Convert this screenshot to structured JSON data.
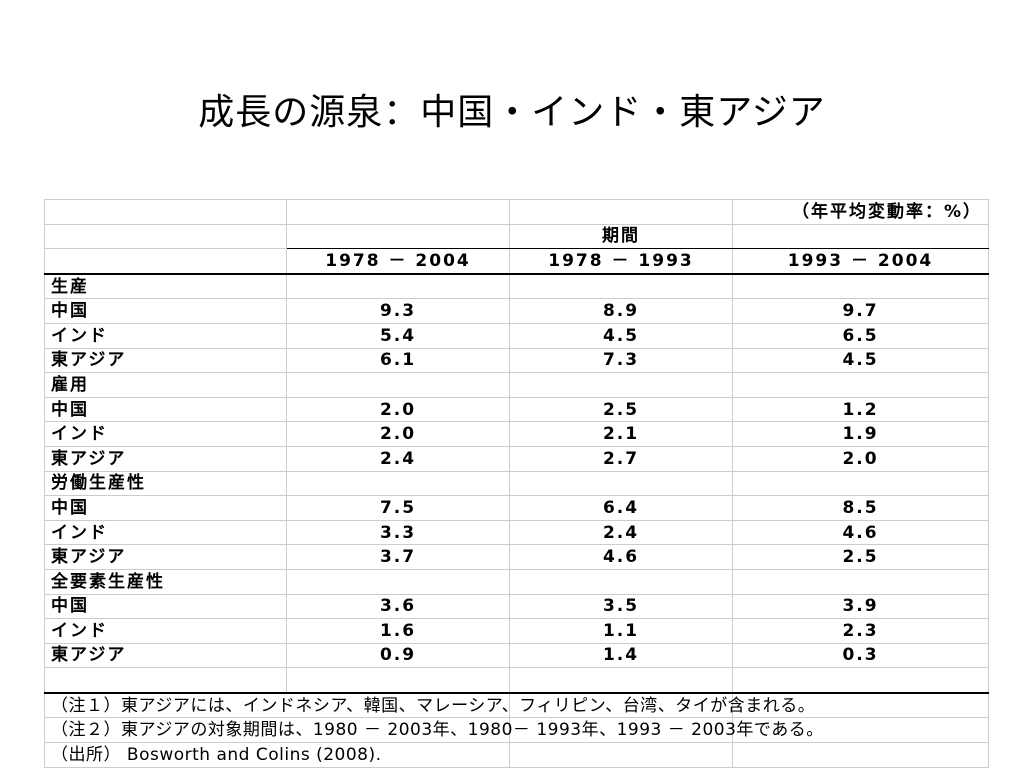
{
  "title": "成長の源泉：中国・インド・東アジア",
  "table": {
    "unit": "（年平均変動率：%）",
    "period_label": "期間",
    "columns": [
      "1978 － 2004",
      "1978 － 1993",
      "1993 － 2004"
    ],
    "sections": [
      {
        "label": "生産",
        "rows": [
          {
            "name": "中国",
            "values": [
              "9.3",
              "8.9",
              "9.7"
            ]
          },
          {
            "name": "インド",
            "values": [
              "5.4",
              "4.5",
              "6.5"
            ]
          },
          {
            "name": "東アジア",
            "values": [
              "6.1",
              "7.3",
              "4.5"
            ]
          }
        ]
      },
      {
        "label": "雇用",
        "rows": [
          {
            "name": "中国",
            "values": [
              "2.0",
              "2.5",
              "1.2"
            ]
          },
          {
            "name": "インド",
            "values": [
              "2.0",
              "2.1",
              "1.9"
            ]
          },
          {
            "name": "東アジア",
            "values": [
              "2.4",
              "2.7",
              "2.0"
            ]
          }
        ]
      },
      {
        "label": "労働生産性",
        "rows": [
          {
            "name": "中国",
            "values": [
              "7.5",
              "6.4",
              "8.5"
            ]
          },
          {
            "name": "インド",
            "values": [
              "3.3",
              "2.4",
              "4.6"
            ]
          },
          {
            "name": "東アジア",
            "values": [
              "3.7",
              "4.6",
              "2.5"
            ]
          }
        ]
      },
      {
        "label": "全要素生産性",
        "rows": [
          {
            "name": "中国",
            "values": [
              "3.6",
              "3.5",
              "3.9"
            ]
          },
          {
            "name": "インド",
            "values": [
              "1.6",
              "1.1",
              "2.3"
            ]
          },
          {
            "name": "東アジア",
            "values": [
              "0.9",
              "1.4",
              "0.3"
            ]
          }
        ]
      }
    ],
    "notes": [
      "（注１）東アジアには、インドネシア、韓国、マレーシア、フィリピン、台湾、タイが含まれる。",
      "（注２）東アジアの対象期間は、1980 － 2003年、1980－ 1993年、1993 － 2003年である。",
      "（出所） Bosworth and Colins (2008)."
    ]
  }
}
